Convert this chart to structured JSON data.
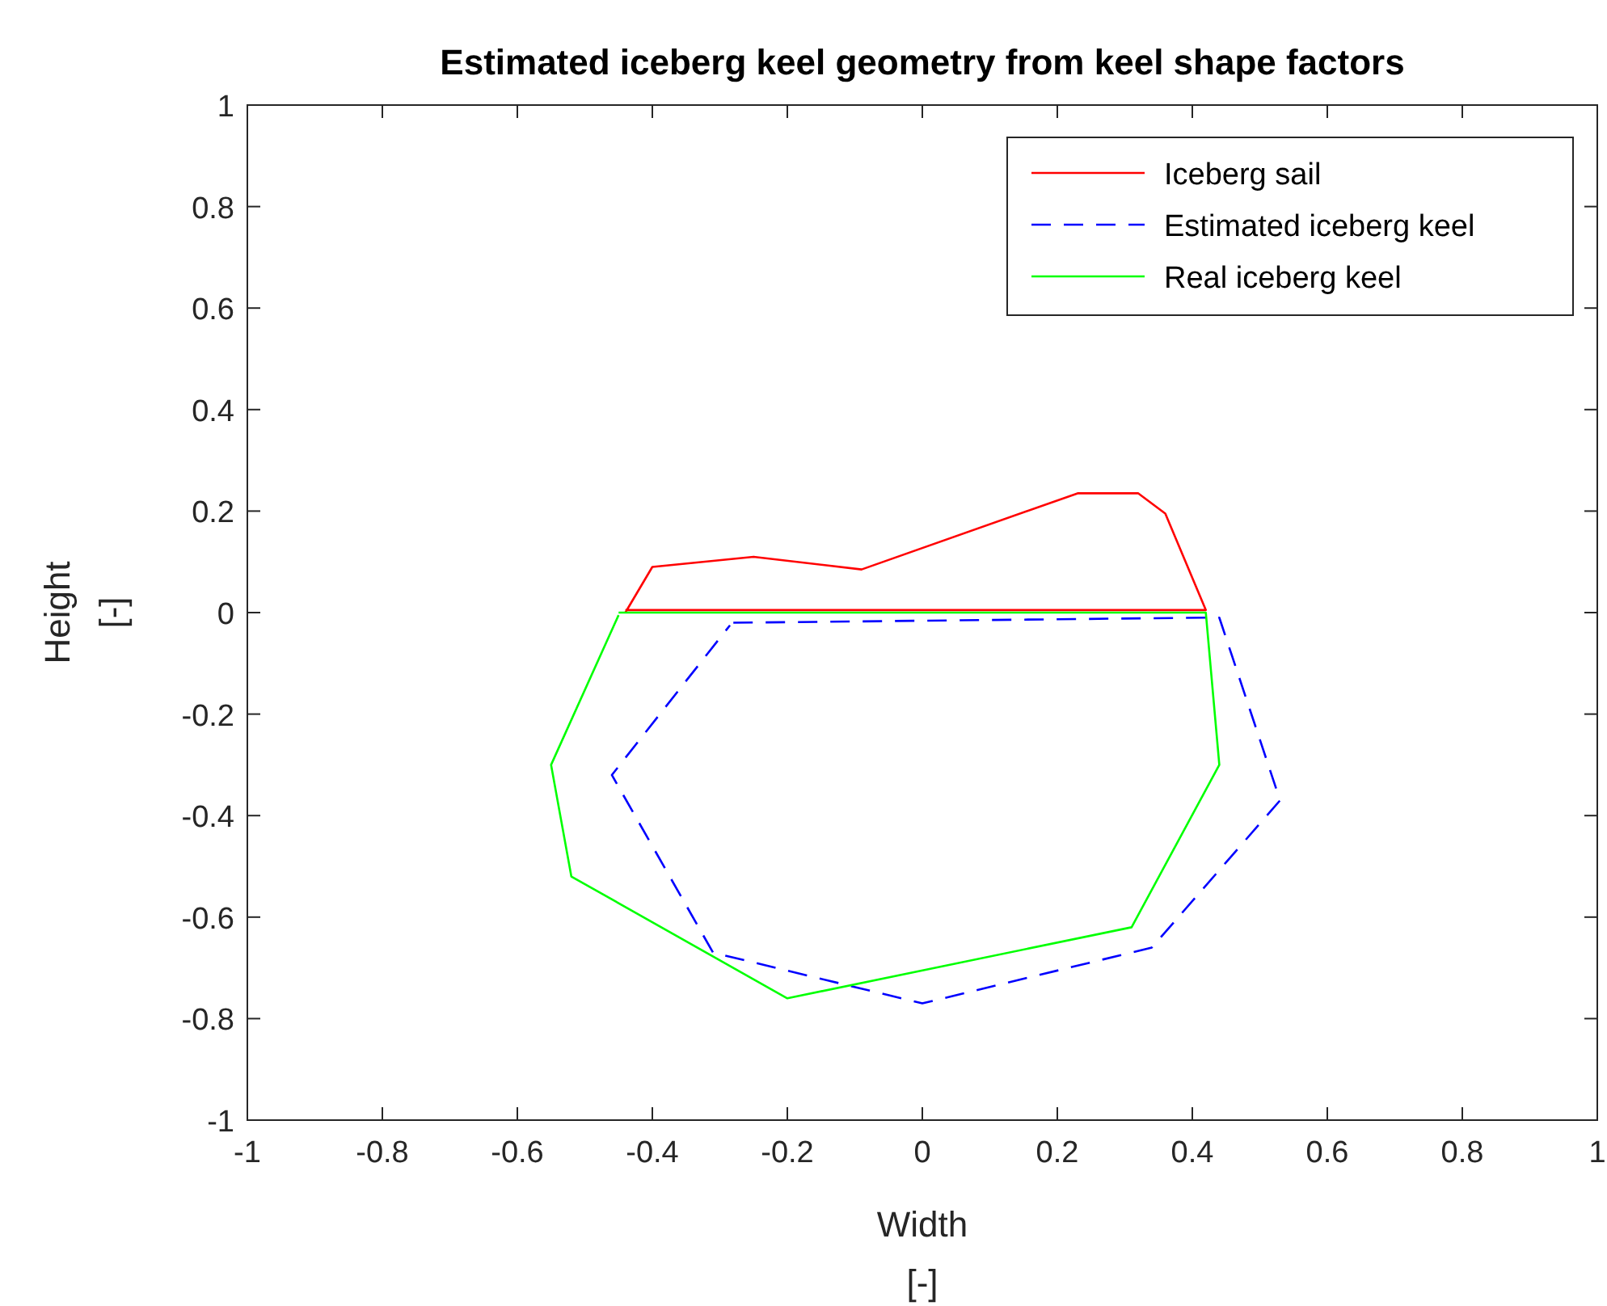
{
  "chart_data": {
    "type": "line",
    "title": "Estimated iceberg keel geometry from keel shape factors",
    "xlabel": "Width\n[-]",
    "ylabel": "Height\n[-]",
    "xlim": [
      -1,
      1
    ],
    "ylim": [
      -1,
      1
    ],
    "xticks": [
      -1,
      -0.8,
      -0.6,
      -0.4,
      -0.2,
      0,
      0.2,
      0.4,
      0.6,
      0.8,
      1
    ],
    "yticks": [
      -1,
      -0.8,
      -0.6,
      -0.4,
      -0.2,
      0,
      0.2,
      0.4,
      0.6,
      0.8,
      1
    ],
    "grid": false,
    "legend": "top right",
    "marker": "none",
    "series": [
      {
        "name": "Iceberg sail",
        "color": "#ff0000",
        "line_style": "solid",
        "x": [
          -0.44,
          -0.4,
          -0.25,
          -0.09,
          0.23,
          0.32,
          0.36,
          0.42,
          -0.44
        ],
        "values": [
          0,
          0.09,
          0.11,
          0.085,
          0.235,
          0.235,
          0.195,
          0.005,
          0.005
        ]
      },
      {
        "name": "Estimated iceberg keel",
        "color": "#0000ff",
        "line_style": "dashed",
        "x": [
          -0.28,
          0.42,
          0.44,
          0.53,
          0.34,
          0,
          -0.31,
          -0.46,
          -0.285
        ],
        "values": [
          -0.02,
          -0.01,
          -0.01,
          -0.37,
          -0.66,
          -0.77,
          -0.67,
          -0.32,
          -0.025
        ]
      },
      {
        "name": "Real iceberg keel",
        "color": "#00ff00",
        "line_style": "solid",
        "x": [
          -0.45,
          0.42,
          0.44,
          0.31,
          -0.2,
          -0.52,
          -0.55,
          -0.45
        ],
        "values": [
          0,
          0,
          -0.3,
          -0.62,
          -0.76,
          -0.52,
          -0.3,
          -0.005
        ]
      }
    ]
  }
}
